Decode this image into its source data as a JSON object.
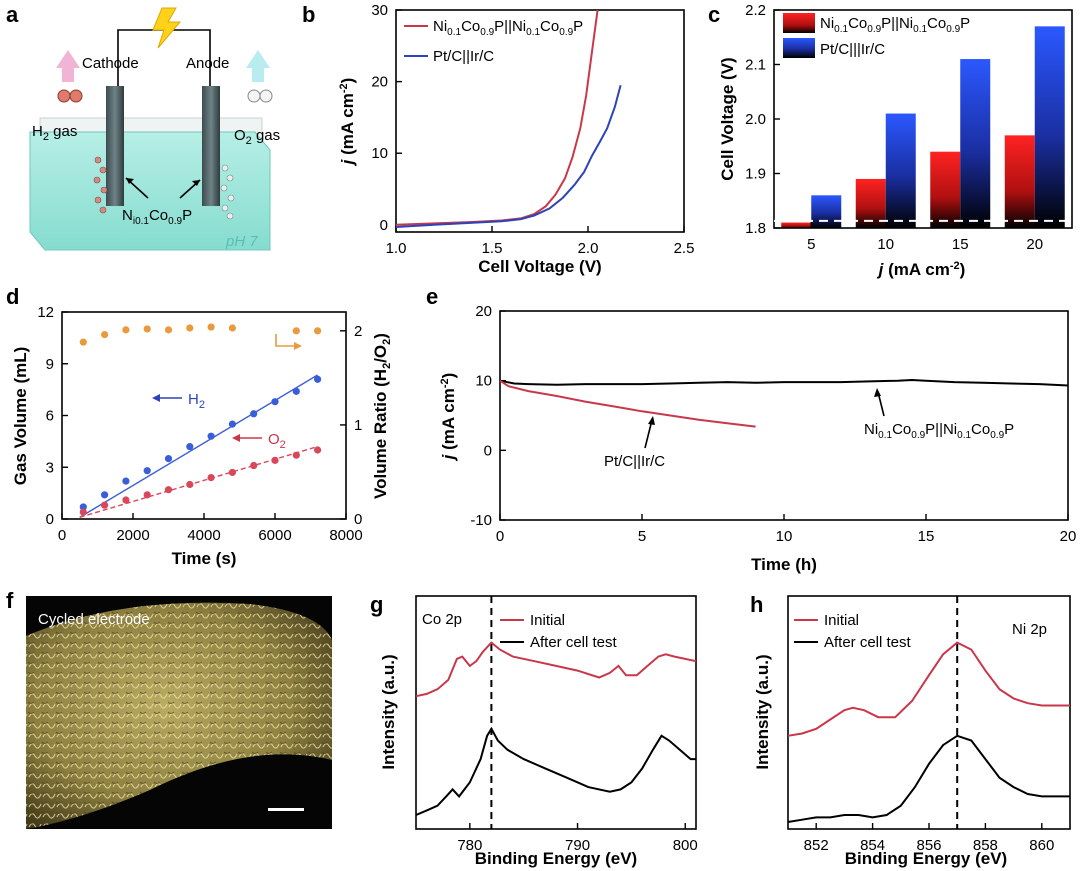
{
  "figure": {
    "panel_labels": [
      "a",
      "b",
      "c",
      "d",
      "e",
      "f",
      "g",
      "h"
    ]
  },
  "colors": {
    "red": "#c8384a",
    "blue": "#2c44b8",
    "bar_red": "#ee2222",
    "bar_blue": "#2b55ff",
    "orange": "#e89a3c",
    "dots_blue": "#3a5ed8",
    "dots_red": "#d8485a",
    "water": "#8fe0d4",
    "sem": "#a89850"
  },
  "panel_a": {
    "cathode": "Cathode",
    "anode": "Anode",
    "h2_gas": "H",
    "h2_sub": "2",
    "h2_gas_suffix": " gas",
    "o2_gas": "O",
    "o2_sub": "2",
    "o2_gas_suffix": " gas",
    "catalyst": "N",
    "catalyst_sub1": "i0.1",
    "catalyst_mid": "Co",
    "catalyst_sub2": "0.9",
    "catalyst_end": "P",
    "ph": "pH 7"
  },
  "panel_f": {
    "caption": "Cycled electrode"
  },
  "chart_data": [
    {
      "id": "b",
      "type": "line",
      "xlabel": "Cell Voltage (V)",
      "ylabel_main": "j",
      "ylabel_rest": " (mA cm",
      "ylabel_sup": "-2",
      "ylabel_end": ")",
      "xlim": [
        1.0,
        2.5
      ],
      "ylim": [
        -1,
        30
      ],
      "xticks": [
        1.0,
        1.5,
        2.0,
        2.5
      ],
      "xtick_labels": [
        "1.0",
        "1.5",
        "2.0",
        "2.5"
      ],
      "yticks": [
        0,
        10,
        20,
        30
      ],
      "ytick_labels": [
        "0",
        "10",
        "20",
        "30"
      ],
      "legend": [
        {
          "pre": "Ni",
          "s1": "0.1",
          "m1": "Co",
          "s2": "0.9",
          "m2": "P||Ni",
          "s3": "0.1",
          "m3": "Co",
          "s4": "0.9",
          "m4": "P"
        },
        {
          "pre": "Pt/C||Ir/C"
        }
      ],
      "series": [
        {
          "name": "Ni0.1Co0.9P||Ni0.1Co0.9P",
          "color_key": "red",
          "x": [
            1.0,
            1.2,
            1.4,
            1.55,
            1.65,
            1.72,
            1.78,
            1.83,
            1.88,
            1.92,
            1.96,
            1.99,
            2.02,
            2.05
          ],
          "y": [
            0.0,
            0.2,
            0.4,
            0.6,
            0.9,
            1.5,
            2.6,
            4.2,
            6.5,
            9.5,
            13.5,
            18.0,
            24.0,
            30.0
          ]
        },
        {
          "name": "Pt/C||Ir/C",
          "color_key": "blue",
          "x": [
            1.0,
            1.2,
            1.4,
            1.55,
            1.65,
            1.72,
            1.8,
            1.87,
            1.93,
            1.98,
            2.02,
            2.06,
            2.1,
            2.14,
            2.17
          ],
          "y": [
            -0.3,
            0.0,
            0.3,
            0.5,
            0.8,
            1.3,
            2.3,
            3.8,
            5.6,
            7.4,
            9.6,
            11.5,
            13.5,
            16.5,
            19.5
          ]
        }
      ]
    },
    {
      "id": "c",
      "type": "bar",
      "xlabel_main": "j",
      "xlabel_rest": " (mA cm",
      "xlabel_sup": "-2",
      "xlabel_end": ")",
      "ylabel": "Cell Voltage (V)",
      "categories": [
        "5",
        "10",
        "15",
        "20"
      ],
      "ylim": [
        1.8,
        2.2
      ],
      "yticks": [
        1.8,
        1.9,
        2.0,
        2.1,
        2.2
      ],
      "ytick_labels": [
        "1.8",
        "1.9",
        "2.0",
        "2.1",
        "2.2"
      ],
      "legend": [
        {
          "pre": "Ni",
          "s1": "0.1",
          "m1": "Co",
          "s2": "0.9",
          "m2": "P||Ni",
          "s3": "0.1",
          "m3": "Co",
          "s4": "0.9",
          "m4": "P"
        },
        {
          "pre": "Pt/C|||Ir/C"
        }
      ],
      "series": [
        {
          "name": "Ni0.1Co0.9P||Ni0.1Co0.9P",
          "color_key": "bar_red",
          "values": [
            1.81,
            1.89,
            1.94,
            1.97
          ]
        },
        {
          "name": "Pt/C||Ir/C",
          "color_key": "bar_blue",
          "values": [
            1.86,
            2.01,
            2.11,
            2.17
          ]
        }
      ],
      "reference_line": 1.813
    },
    {
      "id": "d",
      "type": "scatter",
      "xlabel": "Time (s)",
      "ylabel": "Gas Volume (mL)",
      "ylabel2_pre": "Volume Ratio (H",
      "ylabel2_s1": "2",
      "ylabel2_mid": "/O",
      "ylabel2_s2": "2",
      "ylabel2_end": ")",
      "xlim": [
        0,
        8000
      ],
      "ylim": [
        0,
        12
      ],
      "y2lim": [
        0,
        2.2
      ],
      "xticks": [
        0,
        2000,
        4000,
        6000,
        8000
      ],
      "xtick_labels": [
        "0",
        "2000",
        "4000",
        "6000",
        "8000"
      ],
      "yticks": [
        0,
        3,
        6,
        9,
        12
      ],
      "ytick_labels": [
        "0",
        "3",
        "6",
        "9",
        "12"
      ],
      "y2ticks": [
        0,
        1,
        2
      ],
      "y2tick_labels": [
        "0",
        "1",
        "2"
      ],
      "h2_label": "H",
      "h2_sub": "2",
      "o2_label": "O",
      "o2_sub": "2",
      "series": [
        {
          "name": "H2",
          "color_key": "dots_blue",
          "x": [
            600,
            1200,
            1800,
            2400,
            3000,
            3600,
            4200,
            4800,
            5400,
            6000,
            6600,
            7200
          ],
          "y": [
            0.7,
            1.4,
            2.2,
            2.8,
            3.5,
            4.2,
            4.8,
            5.5,
            6.1,
            6.8,
            7.4,
            8.1
          ],
          "fit": [
            0.1,
            8.35
          ]
        },
        {
          "name": "O2",
          "color_key": "dots_red",
          "x": [
            600,
            1200,
            1800,
            2400,
            3000,
            3600,
            4200,
            4800,
            5400,
            6000,
            6600,
            7200
          ],
          "y": [
            0.4,
            0.8,
            1.1,
            1.4,
            1.7,
            2.0,
            2.4,
            2.7,
            3.1,
            3.4,
            3.7,
            4.0
          ],
          "fit": [
            0.1,
            4.2
          ]
        },
        {
          "name": "ratio",
          "color_key": "orange",
          "axis": "y2",
          "x": [
            600,
            1200,
            1800,
            2400,
            3000,
            3600,
            4200,
            4800,
            6600,
            7200
          ],
          "y": [
            1.88,
            1.96,
            2.01,
            2.02,
            2.01,
            2.03,
            2.04,
            2.03,
            2.0,
            2.0
          ]
        }
      ]
    },
    {
      "id": "e",
      "type": "line",
      "xlabel": "Time (h)",
      "ylabel_main": "j",
      "ylabel_rest": " (mA cm",
      "ylabel_sup": "-2",
      "ylabel_end": ")",
      "xlim": [
        0,
        20
      ],
      "ylim": [
        -10,
        20
      ],
      "xticks": [
        0,
        5,
        10,
        15,
        20
      ],
      "xtick_labels": [
        "0",
        "5",
        "10",
        "15",
        "20"
      ],
      "yticks": [
        -10,
        0,
        10,
        20
      ],
      "ytick_labels": [
        "-10",
        "0",
        "10",
        "20"
      ],
      "annot_black": {
        "pre": "Ni",
        "s1": "0.1",
        "m1": "Co",
        "s2": "0.9",
        "m2": "P||Ni",
        "s3": "0.1",
        "m3": "Co",
        "s4": "0.9",
        "m4": "P"
      },
      "annot_red": "Pt/C||Ir/C",
      "series": [
        {
          "name": "Ni0.1Co0.9P||Ni0.1Co0.9P",
          "color_key": "black",
          "x": [
            0,
            0.5,
            1,
            2,
            3,
            4,
            5,
            6,
            7,
            8,
            9,
            10,
            11,
            12,
            13,
            14,
            14.5,
            15,
            16,
            17,
            18,
            19,
            20
          ],
          "y": [
            10.0,
            9.6,
            9.5,
            9.4,
            9.5,
            9.5,
            9.5,
            9.6,
            9.7,
            9.8,
            9.7,
            9.8,
            9.8,
            9.8,
            9.9,
            10.0,
            10.1,
            10.0,
            9.8,
            9.7,
            9.6,
            9.5,
            9.3
          ]
        },
        {
          "name": "Pt/C||Ir/C",
          "color_key": "red",
          "x": [
            0,
            0.3,
            1,
            2,
            3,
            4,
            5,
            6,
            7,
            8,
            9
          ],
          "y": [
            10.0,
            9.2,
            8.5,
            7.8,
            7.0,
            6.3,
            5.6,
            5.0,
            4.4,
            3.9,
            3.4
          ]
        }
      ]
    },
    {
      "id": "g",
      "type": "line",
      "xlabel": "Binding Energy (eV)",
      "ylabel": "Intensity (a.u.)",
      "title": "Co 2p",
      "legend": [
        "Initial",
        "After cell test"
      ],
      "xlim": [
        775,
        801
      ],
      "xticks": [
        780,
        790,
        800
      ],
      "xtick_labels": [
        "780",
        "790",
        "800"
      ],
      "ref_line": 782,
      "series": [
        {
          "name": "Initial",
          "color_key": "red",
          "x": [
            775,
            776,
            777,
            778,
            778.8,
            779.3,
            780,
            780.6,
            781.2,
            782,
            782.8,
            784,
            786,
            788,
            790,
            792,
            793,
            793.8,
            794.5,
            795.5,
            796.5,
            797.5,
            798.2,
            799,
            800,
            801
          ],
          "y": [
            0.57,
            0.58,
            0.6,
            0.64,
            0.73,
            0.74,
            0.7,
            0.72,
            0.76,
            0.8,
            0.77,
            0.74,
            0.72,
            0.7,
            0.68,
            0.65,
            0.67,
            0.7,
            0.66,
            0.66,
            0.7,
            0.74,
            0.75,
            0.74,
            0.73,
            0.72
          ]
        },
        {
          "name": "After cell test",
          "color_key": "black",
          "x": [
            775,
            776,
            777,
            777.8,
            778.4,
            779,
            780,
            781,
            781.6,
            782,
            782.6,
            783.5,
            785,
            787,
            789,
            791,
            793,
            794,
            795,
            796,
            797,
            797.8,
            798.5,
            799.5,
            800.5,
            801
          ],
          "y": [
            0.06,
            0.08,
            0.1,
            0.14,
            0.17,
            0.14,
            0.2,
            0.3,
            0.4,
            0.43,
            0.38,
            0.34,
            0.3,
            0.26,
            0.22,
            0.18,
            0.16,
            0.17,
            0.2,
            0.26,
            0.34,
            0.4,
            0.38,
            0.34,
            0.3,
            0.3
          ]
        }
      ]
    },
    {
      "id": "h",
      "type": "line",
      "xlabel": "Binding Energy (eV)",
      "ylabel": "Intensity (a.u.)",
      "title": "Ni 2p",
      "legend": [
        "Initial",
        "After cell test"
      ],
      "xlim": [
        851,
        861
      ],
      "xticks": [
        852,
        854,
        856,
        858,
        860
      ],
      "xtick_labels": [
        "852",
        "854",
        "856",
        "858",
        "860"
      ],
      "ref_line": 857,
      "series": [
        {
          "name": "Initial",
          "color_key": "red",
          "x": [
            851,
            851.5,
            852,
            852.5,
            853,
            853.3,
            853.7,
            854.2,
            854.8,
            855.4,
            856,
            856.5,
            857,
            857.5,
            858,
            858.5,
            859,
            859.5,
            860,
            860.5,
            861
          ],
          "y": [
            0.4,
            0.41,
            0.43,
            0.47,
            0.51,
            0.52,
            0.51,
            0.48,
            0.48,
            0.55,
            0.66,
            0.75,
            0.8,
            0.77,
            0.68,
            0.6,
            0.56,
            0.54,
            0.53,
            0.53,
            0.53
          ]
        },
        {
          "name": "After cell test",
          "color_key": "black",
          "x": [
            851,
            851.5,
            852,
            852.5,
            853,
            853.5,
            854,
            854.5,
            855,
            855.5,
            856,
            856.5,
            857,
            857.5,
            858,
            858.5,
            859,
            859.5,
            860,
            860.5,
            861
          ],
          "y": [
            0.03,
            0.04,
            0.05,
            0.05,
            0.06,
            0.06,
            0.05,
            0.06,
            0.1,
            0.18,
            0.28,
            0.36,
            0.4,
            0.38,
            0.3,
            0.22,
            0.18,
            0.15,
            0.14,
            0.14,
            0.14
          ]
        }
      ]
    }
  ]
}
